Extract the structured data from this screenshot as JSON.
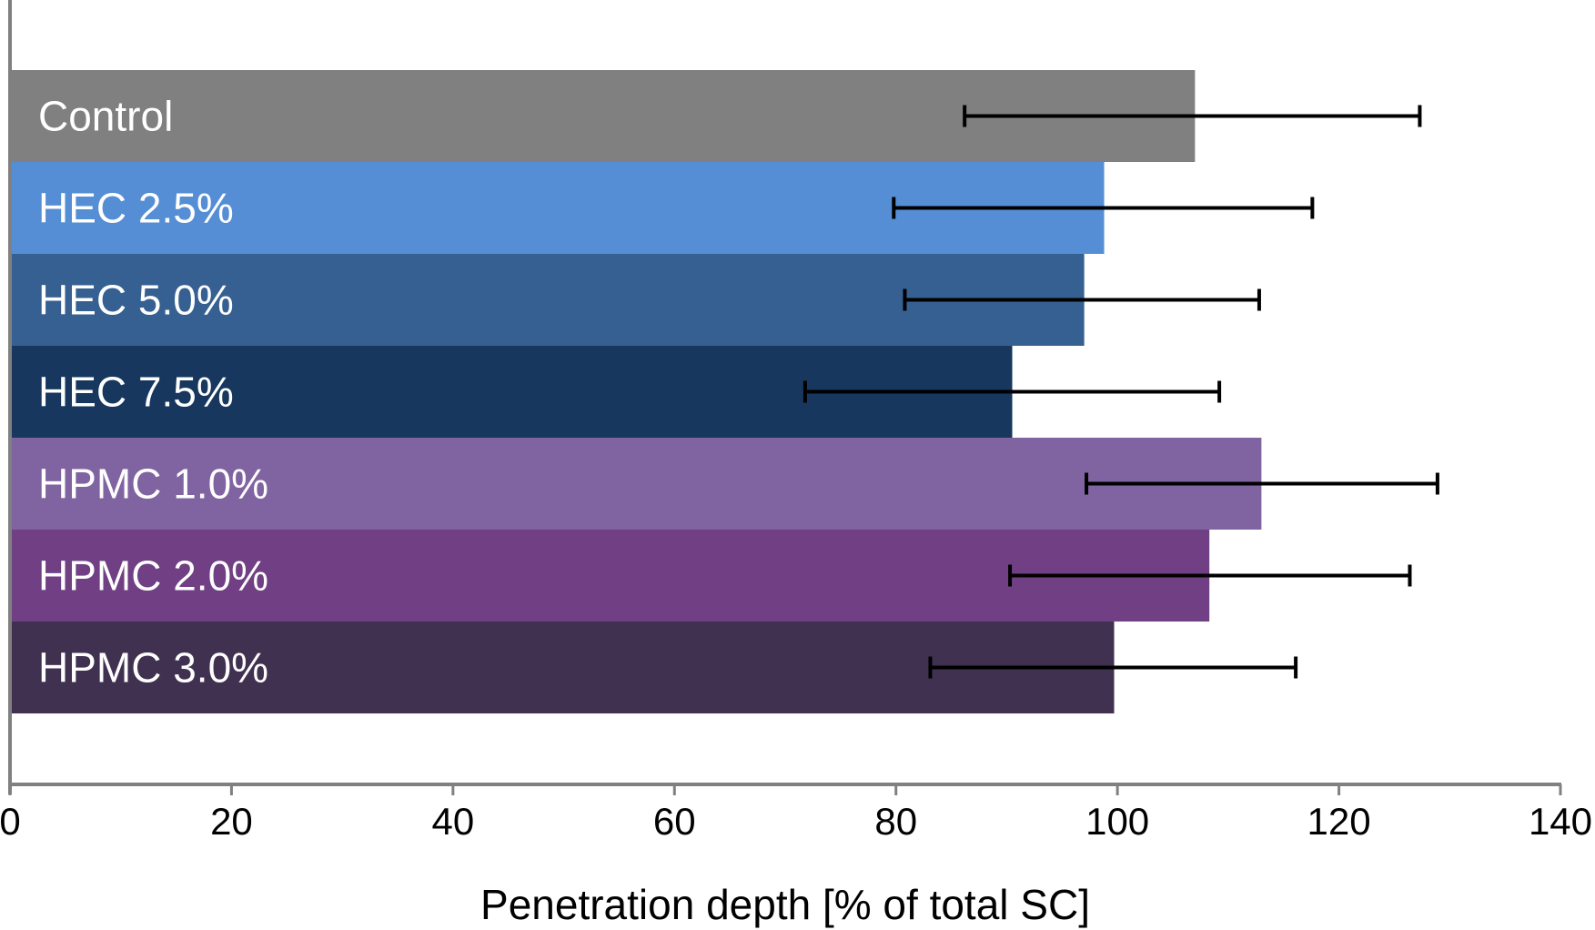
{
  "chart_data": {
    "type": "bar",
    "orientation": "horizontal",
    "title": "",
    "xlabel": "Penetration depth [% of total SC]",
    "ylabel": "",
    "xlim": [
      0,
      140
    ],
    "xticks": [
      0,
      20,
      40,
      60,
      80,
      100,
      120,
      140
    ],
    "xtick_labels": [
      "0",
      "20",
      "40",
      "60",
      "80",
      "100",
      "120",
      "140"
    ],
    "grid": false,
    "legend": "none",
    "categories": [
      "Control",
      "HEC 2.5%",
      "HEC 5.0%",
      "HEC 7.5%",
      "HPMC 1.0%",
      "HPMC 2.0%",
      "HPMC 3.0%"
    ],
    "values": [
      107,
      98.8,
      97,
      90.5,
      113,
      108.3,
      99.7
    ],
    "error_low": [
      86.2,
      79.8,
      80.8,
      71.8,
      97.2,
      90.3,
      83.1
    ],
    "error_high": [
      127.3,
      117.6,
      112.8,
      109.2,
      128.9,
      126.4,
      116.1
    ],
    "colors": [
      "#808080",
      "#558ed5",
      "#366092",
      "#17375e",
      "#8064a2",
      "#703f84",
      "#403151"
    ],
    "axis_color": "#808080",
    "error_bar_color": "#000000"
  }
}
